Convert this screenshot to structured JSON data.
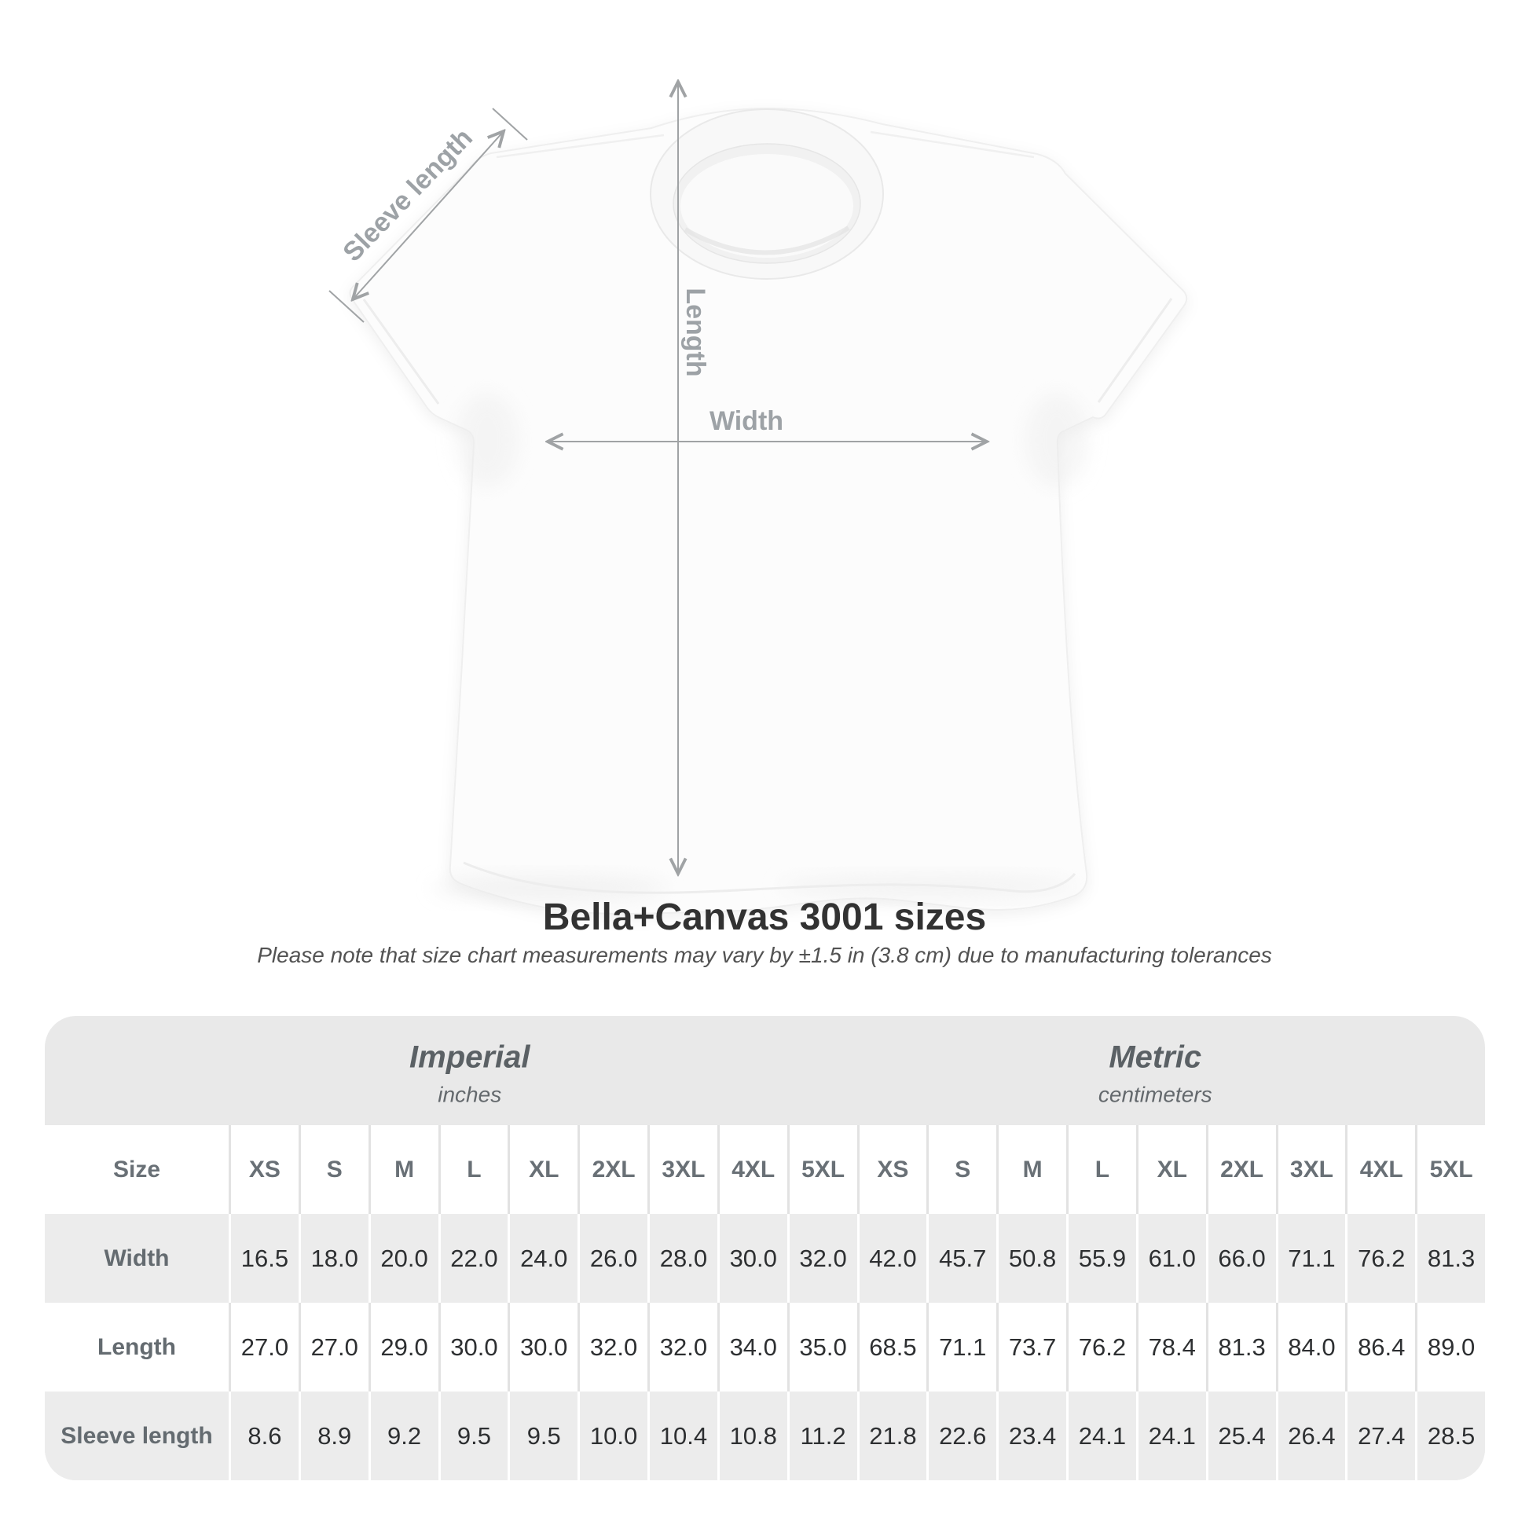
{
  "diagram": {
    "sleeve_label": "Sleeve length",
    "length_label": "Length",
    "width_label": "Width",
    "annotation_color": "#9da2a6",
    "arrow_color": "#a0a3a5"
  },
  "heading": {
    "title": "Bella+Canvas 3001 sizes",
    "subtitle": "Please note that size chart measurements may vary by ±1.5 in (3.8 cm) due to manufacturing tolerances"
  },
  "table": {
    "corner_label": "Size",
    "groups": [
      {
        "name": "Imperial",
        "unit": "inches"
      },
      {
        "name": "Metric",
        "unit": "centimeters"
      }
    ],
    "sizes": [
      "XS",
      "S",
      "M",
      "L",
      "XL",
      "2XL",
      "3XL",
      "4XL",
      "5XL"
    ],
    "rows": [
      {
        "label": "Width",
        "imperial": [
          "16.5",
          "18.0",
          "20.0",
          "22.0",
          "24.0",
          "26.0",
          "28.0",
          "30.0",
          "32.0"
        ],
        "metric": [
          "42.0",
          "45.7",
          "50.8",
          "55.9",
          "61.0",
          "66.0",
          "71.1",
          "76.2",
          "81.3"
        ]
      },
      {
        "label": "Length",
        "imperial": [
          "27.0",
          "27.0",
          "29.0",
          "30.0",
          "30.0",
          "32.0",
          "32.0",
          "34.0",
          "35.0"
        ],
        "metric": [
          "68.5",
          "71.1",
          "73.7",
          "76.2",
          "78.4",
          "81.3",
          "84.0",
          "86.4",
          "89.0"
        ]
      },
      {
        "label": "Sleeve length",
        "imperial": [
          "8.6",
          "8.9",
          "9.2",
          "9.5",
          "9.5",
          "10.0",
          "10.4",
          "10.8",
          "11.2"
        ],
        "metric": [
          "21.8",
          "22.6",
          "23.4",
          "24.1",
          "24.1",
          "25.4",
          "26.4",
          "27.4",
          "28.5"
        ]
      }
    ],
    "colors": {
      "band_gray": "#e9e9e9",
      "stripe_gray": "#ececec",
      "separator_on_white": "#e2e2e2",
      "separator_on_gray": "#ffffff",
      "header_text": "#697076",
      "value_text": "#2d2f31"
    }
  },
  "chart_data": {
    "type": "table",
    "title": "Bella+Canvas 3001 sizes",
    "columns": [
      "XS",
      "S",
      "M",
      "L",
      "XL",
      "2XL",
      "3XL",
      "4XL",
      "5XL"
    ],
    "units": {
      "imperial": "inches",
      "metric": "centimeters"
    },
    "width_in": [
      16.5,
      18.0,
      20.0,
      22.0,
      24.0,
      26.0,
      28.0,
      30.0,
      32.0
    ],
    "width_cm": [
      42.0,
      45.7,
      50.8,
      55.9,
      61.0,
      66.0,
      71.1,
      76.2,
      81.3
    ],
    "length_in": [
      27.0,
      27.0,
      29.0,
      30.0,
      30.0,
      32.0,
      32.0,
      34.0,
      35.0
    ],
    "length_cm": [
      68.5,
      71.1,
      73.7,
      76.2,
      78.4,
      81.3,
      84.0,
      86.4,
      89.0
    ],
    "sleeve_in": [
      8.6,
      8.9,
      9.2,
      9.5,
      9.5,
      10.0,
      10.4,
      10.8,
      11.2
    ],
    "sleeve_cm": [
      21.8,
      22.6,
      23.4,
      24.1,
      24.1,
      25.4,
      26.4,
      27.4,
      28.5
    ]
  }
}
